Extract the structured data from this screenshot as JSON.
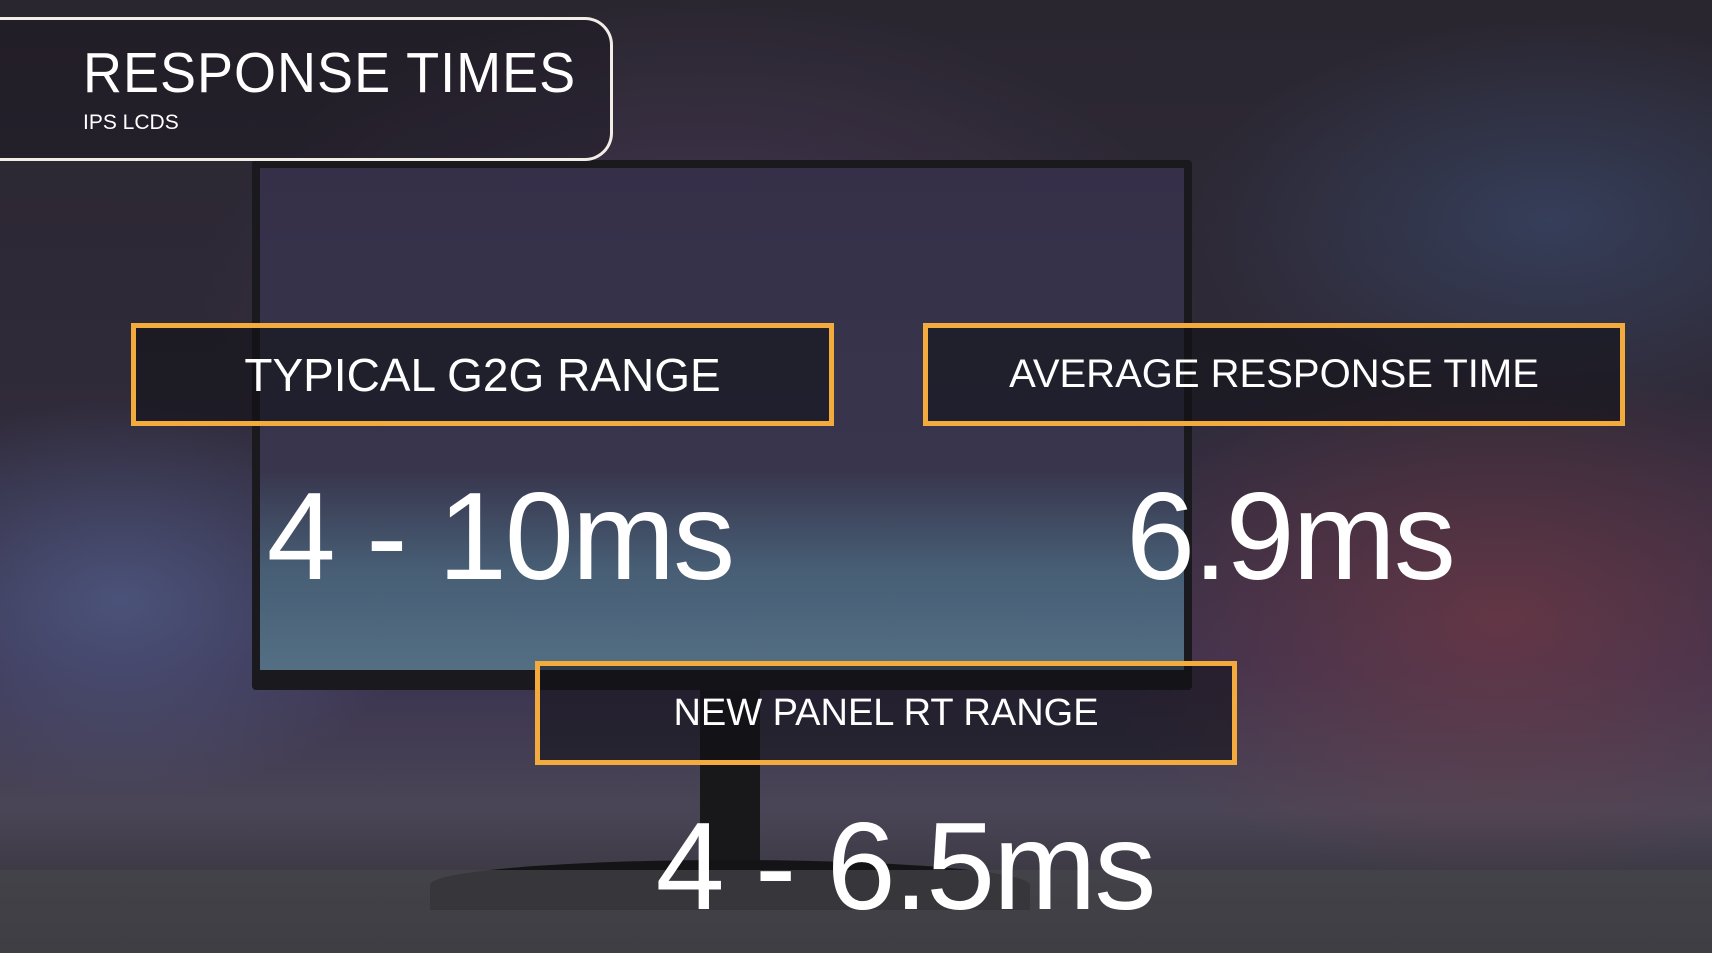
{
  "header": {
    "title": "RESPONSE TIMES",
    "subtitle": "IPS LCDS"
  },
  "accent_color": "#f2ab3c",
  "stats": [
    {
      "label": "TYPICAL G2G RANGE",
      "value": "4 - 10ms"
    },
    {
      "label": "AVERAGE RESPONSE TIME",
      "value": "6.9ms"
    },
    {
      "label": "NEW PANEL RT RANGE",
      "value": "4 - 6.5ms"
    }
  ]
}
